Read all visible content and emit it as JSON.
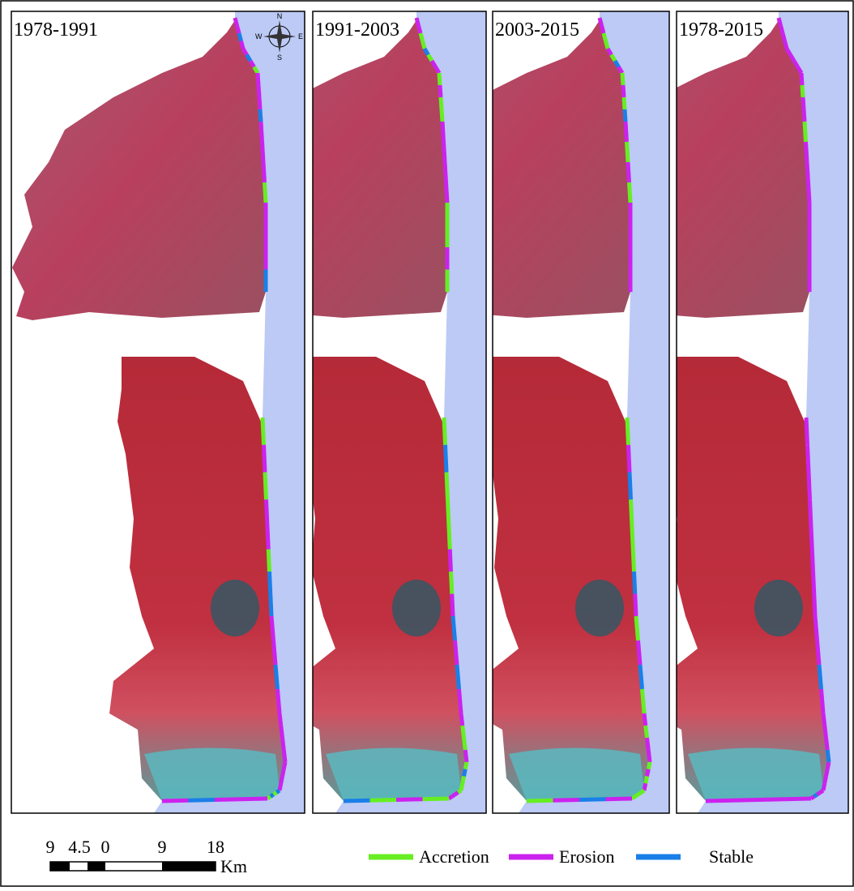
{
  "panels": [
    {
      "title": "1978-1991"
    },
    {
      "title": "1991-2003"
    },
    {
      "title": "2003-2015"
    },
    {
      "title": "1978-2015"
    }
  ],
  "compass": {
    "n": "N",
    "e": "E",
    "s": "S",
    "w": "W"
  },
  "scale_bar": {
    "labels": [
      "9",
      "4.5",
      "0",
      "9",
      "18"
    ],
    "unit": "Km"
  },
  "legend": [
    {
      "label": "Accretion",
      "color": "#66ee22"
    },
    {
      "label": "Erosion",
      "color": "#cc22ee"
    },
    {
      "label": "Stable",
      "color": "#1a7fe8"
    }
  ]
}
